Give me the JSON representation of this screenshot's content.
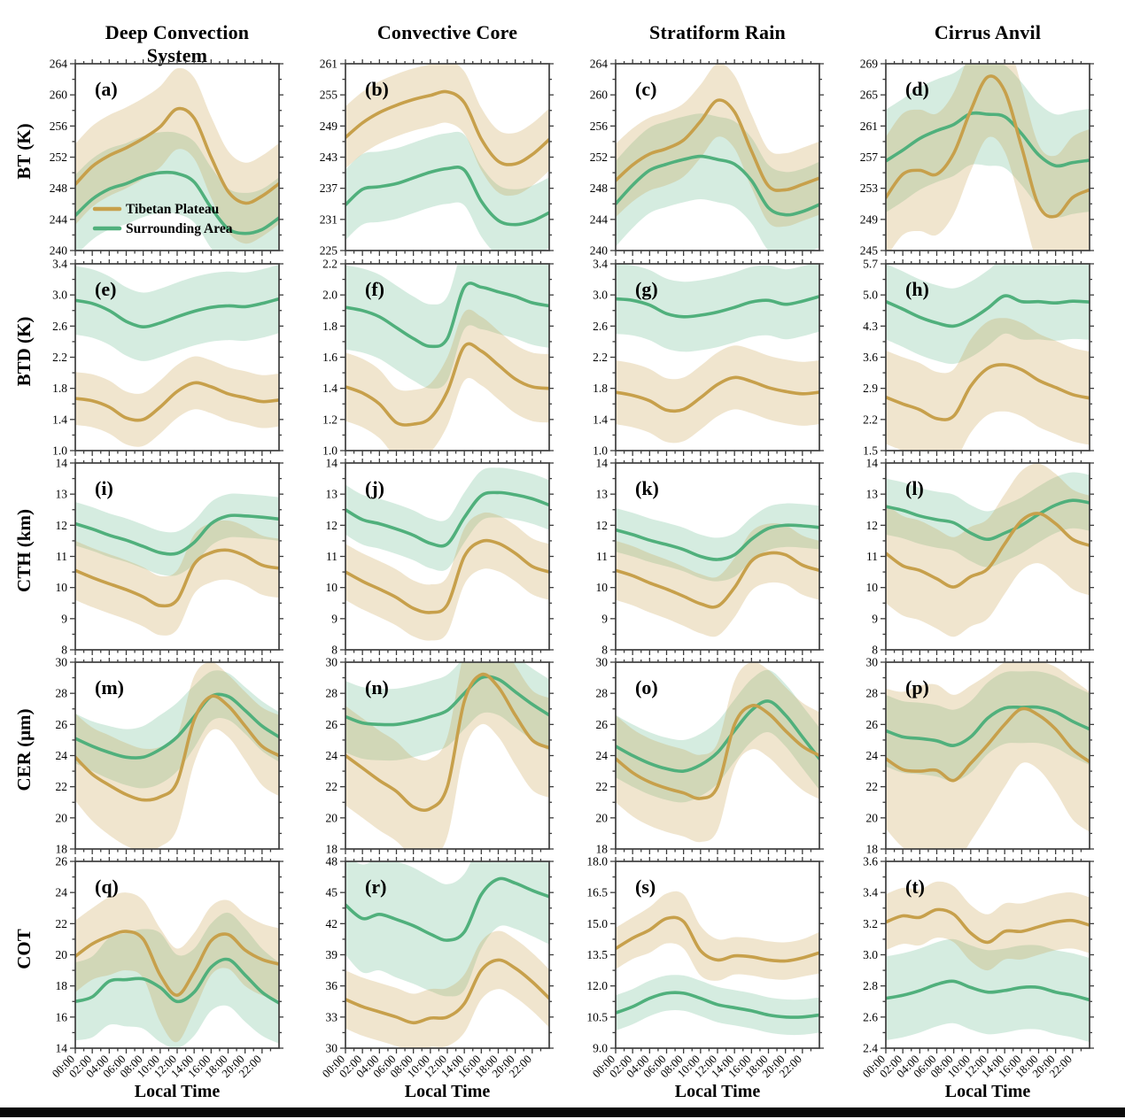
{
  "figure": {
    "columns": [
      "Deep Convection System",
      "Convective Core",
      "Stratiform Rain",
      "Cirrus Anvil"
    ],
    "rows": [
      {
        "label": "BT (K)"
      },
      {
        "label": "BTD (K)"
      },
      {
        "label": "CTH (km)"
      },
      {
        "label": "CER (μm)"
      },
      {
        "label": "COT"
      }
    ],
    "xlabel": "Local Time",
    "x_ticks": [
      "00:00",
      "02:00",
      "04:00",
      "06:00",
      "08:00",
      "10:00",
      "12:00",
      "14:00",
      "16:00",
      "18:00",
      "20:00",
      "22:00"
    ],
    "legend": {
      "tp": "Tibetan Plateau",
      "sa": "Surrounding Area"
    },
    "colors": {
      "tp": "#C7A04B",
      "sa": "#50B07C",
      "tp_band": "rgba(199,160,75,0.27)",
      "sa_band": "rgba(80,176,124,0.24)",
      "axis": "#3d3d3d"
    }
  },
  "chart_data": [
    {
      "id": "a",
      "label": "(a)",
      "row": 0,
      "col": 0,
      "type": "line",
      "legend": true,
      "yticks": [
        "240",
        "244",
        "248",
        "252",
        "256",
        "260",
        "264"
      ],
      "tp": {
        "mean": [
          248.5,
          250.8,
          252.2,
          253.2,
          254.4,
          255.9,
          258.2,
          257.0,
          252.0,
          247.6,
          246.1,
          247.0,
          248.6
        ],
        "spread": 5.2
      },
      "sa": {
        "mean": [
          244.5,
          246.6,
          247.9,
          248.6,
          249.5,
          250.0,
          249.9,
          248.8,
          245.5,
          242.8,
          242.2,
          242.7,
          244.2
        ],
        "spread": 5.2
      }
    },
    {
      "id": "b",
      "label": "(b)",
      "row": 0,
      "col": 1,
      "type": "line",
      "legend": false,
      "yticks": [
        "225",
        "231",
        "237",
        "243",
        "249",
        "255",
        "261"
      ],
      "tp": {
        "mean": [
          246.8,
          249.6,
          251.6,
          253.0,
          254.1,
          254.9,
          255.6,
          253.5,
          246.5,
          242.2,
          241.7,
          243.5,
          246.4
        ],
        "spread": 6.0
      },
      "sa": {
        "mean": [
          233.8,
          236.8,
          237.3,
          237.9,
          239.0,
          240.1,
          240.8,
          240.5,
          234.5,
          230.8,
          230.0,
          230.7,
          232.3
        ],
        "spread": 6.8
      }
    },
    {
      "id": "c",
      "label": "(c)",
      "row": 0,
      "col": 2,
      "type": "line",
      "legend": false,
      "yticks": [
        "240",
        "244",
        "248",
        "252",
        "256",
        "260",
        "264"
      ],
      "tp": {
        "mean": [
          249.0,
          251.0,
          252.4,
          253.1,
          254.2,
          256.6,
          259.3,
          257.8,
          252.8,
          248.3,
          247.8,
          248.5,
          249.3
        ],
        "spread": 4.7
      },
      "sa": {
        "mean": [
          246.0,
          248.4,
          250.3,
          251.1,
          251.7,
          252.1,
          251.7,
          251.1,
          249.0,
          245.5,
          244.6,
          245.0,
          245.9
        ],
        "spread": 5.5
      }
    },
    {
      "id": "d",
      "label": "(d)",
      "row": 0,
      "col": 3,
      "type": "line",
      "legend": false,
      "yticks": [
        "245",
        "249",
        "253",
        "257",
        "261",
        "265",
        "269"
      ],
      "tp": {
        "mean": [
          251.8,
          254.8,
          255.3,
          254.8,
          257.5,
          263.0,
          267.3,
          265.5,
          258.3,
          250.8,
          249.4,
          251.8,
          252.8
        ],
        "spread": 7.8
      },
      "sa": {
        "mean": [
          256.5,
          257.9,
          259.4,
          260.4,
          261.2,
          262.6,
          262.5,
          262.2,
          260.0,
          257.3,
          255.9,
          256.3,
          256.6
        ],
        "spread": 6.6
      }
    },
    {
      "id": "e",
      "label": "(e)",
      "row": 1,
      "col": 0,
      "type": "line",
      "legend": false,
      "yticks": [
        "1.0",
        "1.4",
        "1.8",
        "2.2",
        "2.6",
        "3.0",
        "3.4"
      ],
      "tp": {
        "mean": [
          1.67,
          1.64,
          1.56,
          1.42,
          1.4,
          1.56,
          1.76,
          1.87,
          1.82,
          1.73,
          1.68,
          1.63,
          1.65
        ],
        "spread": 0.34
      },
      "sa": {
        "mean": [
          2.93,
          2.89,
          2.8,
          2.66,
          2.59,
          2.64,
          2.72,
          2.79,
          2.84,
          2.86,
          2.85,
          2.89,
          2.95
        ],
        "spread": 0.44
      }
    },
    {
      "id": "f",
      "label": "(f)",
      "row": 1,
      "col": 1,
      "type": "line",
      "legend": false,
      "yticks": [
        "1.0",
        "1.2",
        "1.4",
        "1.6",
        "1.8",
        "2.0",
        "2.2"
      ],
      "tp": {
        "mean": [
          1.41,
          1.37,
          1.3,
          1.18,
          1.17,
          1.21,
          1.38,
          1.67,
          1.64,
          1.55,
          1.46,
          1.41,
          1.4
        ],
        "spread": 0.22
      },
      "sa": {
        "mean": [
          1.92,
          1.9,
          1.86,
          1.79,
          1.72,
          1.67,
          1.72,
          2.05,
          2.05,
          2.02,
          1.99,
          1.95,
          1.93
        ],
        "spread": 0.27
      }
    },
    {
      "id": "g",
      "label": "(g)",
      "row": 1,
      "col": 2,
      "type": "line",
      "legend": false,
      "yticks": [
        "1.0",
        "1.4",
        "1.8",
        "2.2",
        "2.6",
        "3.0",
        "3.4"
      ],
      "tp": {
        "mean": [
          1.75,
          1.71,
          1.64,
          1.52,
          1.53,
          1.68,
          1.85,
          1.94,
          1.89,
          1.81,
          1.76,
          1.73,
          1.75
        ],
        "spread": 0.41
      },
      "sa": {
        "mean": [
          2.95,
          2.93,
          2.87,
          2.76,
          2.72,
          2.74,
          2.78,
          2.84,
          2.91,
          2.93,
          2.88,
          2.92,
          2.98
        ],
        "spread": 0.45
      }
    },
    {
      "id": "h",
      "label": "(h)",
      "row": 1,
      "col": 3,
      "type": "line",
      "legend": false,
      "yticks": [
        "1.5",
        "2.2",
        "2.9",
        "3.6",
        "4.3",
        "5.0",
        "5.7"
      ],
      "tp": {
        "mean": [
          2.7,
          2.55,
          2.42,
          2.22,
          2.28,
          2.95,
          3.35,
          3.43,
          3.32,
          3.08,
          2.92,
          2.76,
          2.68
        ],
        "spread": 1.05
      },
      "sa": {
        "mean": [
          4.85,
          4.68,
          4.5,
          4.37,
          4.3,
          4.45,
          4.7,
          4.98,
          4.85,
          4.85,
          4.82,
          4.86,
          4.84
        ],
        "spread": 0.85
      }
    },
    {
      "id": "i",
      "label": "(i)",
      "row": 2,
      "col": 0,
      "type": "line",
      "legend": false,
      "yticks": [
        "8",
        "9",
        "10",
        "11",
        "12",
        "13",
        "14"
      ],
      "tp": {
        "mean": [
          10.55,
          10.32,
          10.12,
          9.93,
          9.7,
          9.42,
          9.6,
          10.75,
          11.12,
          11.2,
          11.02,
          10.72,
          10.62
        ],
        "spread": 0.95
      },
      "sa": {
        "mean": [
          12.05,
          11.88,
          11.68,
          11.52,
          11.32,
          11.12,
          11.1,
          11.45,
          12.05,
          12.3,
          12.3,
          12.26,
          12.2
        ],
        "spread": 0.7
      }
    },
    {
      "id": "j",
      "label": "(j)",
      "row": 2,
      "col": 1,
      "type": "line",
      "legend": false,
      "yticks": [
        "8",
        "9",
        "10",
        "11",
        "12",
        "13",
        "14"
      ],
      "tp": {
        "mean": [
          10.5,
          10.2,
          9.95,
          9.68,
          9.33,
          9.2,
          9.45,
          11.0,
          11.48,
          11.42,
          11.1,
          10.68,
          10.5
        ],
        "spread": 0.9
      },
      "sa": {
        "mean": [
          12.5,
          12.18,
          12.05,
          11.88,
          11.68,
          11.42,
          11.4,
          12.25,
          12.95,
          13.05,
          12.98,
          12.85,
          12.65
        ],
        "spread": 0.8
      }
    },
    {
      "id": "k",
      "label": "(k)",
      "row": 2,
      "col": 2,
      "type": "line",
      "legend": false,
      "yticks": [
        "8",
        "9",
        "10",
        "11",
        "12",
        "13",
        "14"
      ],
      "tp": {
        "mean": [
          10.55,
          10.38,
          10.15,
          9.95,
          9.72,
          9.48,
          9.4,
          10.0,
          10.85,
          11.1,
          11.05,
          10.72,
          10.55
        ],
        "spread": 0.95
      },
      "sa": {
        "mean": [
          11.85,
          11.7,
          11.52,
          11.38,
          11.22,
          11.0,
          10.9,
          11.05,
          11.55,
          11.9,
          12.0,
          11.98,
          11.93
        ],
        "spread": 0.7
      }
    },
    {
      "id": "l",
      "label": "(l)",
      "row": 2,
      "col": 3,
      "type": "line",
      "legend": false,
      "yticks": [
        "8",
        "9",
        "10",
        "11",
        "12",
        "13",
        "14"
      ],
      "tp": {
        "mean": [
          11.1,
          10.7,
          10.55,
          10.28,
          10.02,
          10.35,
          10.6,
          11.4,
          12.15,
          12.38,
          12.05,
          11.55,
          11.35
        ],
        "spread": 1.6
      },
      "sa": {
        "mean": [
          12.6,
          12.48,
          12.3,
          12.18,
          12.08,
          11.75,
          11.55,
          11.75,
          12.0,
          12.35,
          12.65,
          12.8,
          12.72
        ],
        "spread": 0.9
      }
    },
    {
      "id": "m",
      "label": "(m)",
      "row": 3,
      "col": 0,
      "type": "line",
      "legend": false,
      "yticks": [
        "18",
        "20",
        "22",
        "24",
        "26",
        "28",
        "30"
      ],
      "tp": {
        "mean": [
          23.9,
          22.8,
          22.1,
          21.5,
          21.15,
          21.35,
          22.3,
          26.3,
          27.8,
          27.2,
          25.9,
          24.6,
          24.0
        ],
        "spread": [
          2.8,
          3.0,
          3.2,
          3.3,
          3.3,
          3.2,
          3.0,
          2.8,
          2.2,
          2.0,
          2.2,
          2.5,
          2.6
        ]
      },
      "sa": {
        "mean": [
          25.1,
          24.6,
          24.2,
          23.9,
          23.9,
          24.4,
          25.2,
          26.5,
          27.8,
          27.8,
          26.9,
          25.9,
          25.2
        ],
        "spread": [
          1.6,
          1.6,
          1.7,
          1.8,
          2.0,
          2.2,
          2.2,
          2.0,
          1.6,
          1.5,
          1.5,
          1.6,
          1.6
        ]
      }
    },
    {
      "id": "n",
      "label": "(n)",
      "row": 3,
      "col": 1,
      "type": "line",
      "legend": false,
      "yticks": [
        "18",
        "20",
        "22",
        "24",
        "26",
        "28",
        "30"
      ],
      "tp": {
        "mean": [
          24.0,
          23.2,
          22.4,
          21.7,
          20.7,
          20.6,
          22.0,
          27.5,
          29.2,
          28.4,
          26.6,
          25.0,
          24.5
        ],
        "spread": 3.2
      },
      "sa": {
        "mean": [
          26.5,
          26.1,
          26.0,
          26.0,
          26.2,
          26.5,
          26.9,
          28.0,
          29.0,
          28.9,
          28.1,
          27.3,
          26.6
        ],
        "spread": 2.3
      }
    },
    {
      "id": "o",
      "label": "(o)",
      "row": 3,
      "col": 2,
      "type": "line",
      "legend": false,
      "yticks": [
        "18",
        "20",
        "22",
        "24",
        "26",
        "28",
        "30"
      ],
      "tp": {
        "mean": [
          23.8,
          22.9,
          22.3,
          21.9,
          21.6,
          21.25,
          22.0,
          26.0,
          27.2,
          26.7,
          25.6,
          24.6,
          24.0
        ],
        "spread": 2.8
      },
      "sa": {
        "mean": [
          24.6,
          24.0,
          23.5,
          23.15,
          23.0,
          23.4,
          24.2,
          25.6,
          26.9,
          27.5,
          26.6,
          25.2,
          23.8
        ],
        "spread": 2.0
      }
    },
    {
      "id": "p",
      "label": "(p)",
      "row": 3,
      "col": 3,
      "type": "line",
      "legend": false,
      "yticks": [
        "18",
        "20",
        "22",
        "24",
        "26",
        "28",
        "30"
      ],
      "tp": {
        "mean": [
          23.8,
          23.1,
          23.0,
          23.05,
          22.4,
          23.5,
          24.7,
          26.0,
          27.0,
          26.6,
          25.7,
          24.4,
          23.6
        ],
        "spread": [
          4.5,
          5.0,
          5.5,
          5.5,
          5.5,
          5.0,
          4.5,
          4.0,
          3.5,
          3.5,
          4.0,
          4.5,
          4.5
        ]
      },
      "sa": {
        "mean": [
          25.6,
          25.2,
          25.1,
          24.95,
          24.65,
          25.2,
          26.4,
          27.05,
          27.1,
          27.1,
          26.8,
          26.2,
          25.7
        ],
        "spread": 2.3
      }
    },
    {
      "id": "q",
      "label": "(q)",
      "row": 4,
      "col": 0,
      "type": "line",
      "legend": false,
      "yticks": [
        "14",
        "16",
        "18",
        "20",
        "22",
        "24",
        "26"
      ],
      "tp": {
        "mean": [
          19.9,
          20.7,
          21.2,
          21.5,
          21.0,
          18.7,
          17.4,
          18.9,
          20.9,
          21.3,
          20.3,
          19.7,
          19.4
        ],
        "spread": [
          2.3,
          2.3,
          2.5,
          2.5,
          2.5,
          3.0,
          3.0,
          2.5,
          2.2,
          2.2,
          2.3,
          2.3,
          2.3
        ]
      },
      "sa": {
        "mean": [
          17.0,
          17.3,
          18.3,
          18.4,
          18.45,
          17.9,
          17.0,
          17.6,
          19.2,
          19.7,
          18.7,
          17.6,
          16.9
        ],
        "spread": [
          2.5,
          2.6,
          2.8,
          3.0,
          3.2,
          3.5,
          3.0,
          2.8,
          2.8,
          3.0,
          3.0,
          2.8,
          2.6
        ]
      }
    },
    {
      "id": "r",
      "label": "(r)",
      "row": 4,
      "col": 1,
      "type": "line",
      "legend": false,
      "yticks": [
        "30",
        "33",
        "36",
        "39",
        "42",
        "45",
        "48"
      ],
      "tp": {
        "mean": [
          34.7,
          34.0,
          33.5,
          33.0,
          32.45,
          32.9,
          33.0,
          34.3,
          37.5,
          38.5,
          37.7,
          36.4,
          34.8
        ],
        "spread": 2.8
      },
      "sa": {
        "mean": [
          43.8,
          42.5,
          42.9,
          42.4,
          41.8,
          41.0,
          40.4,
          41.2,
          44.8,
          46.3,
          45.9,
          45.2,
          44.6
        ],
        "spread": [
          4.8,
          5.2,
          5.4,
          5.6,
          5.6,
          5.5,
          5.4,
          5.6,
          5.2,
          4.6,
          4.4,
          4.4,
          4.6
        ]
      }
    },
    {
      "id": "s",
      "label": "(s)",
      "row": 4,
      "col": 2,
      "type": "line",
      "legend": false,
      "yticks": [
        "9.0",
        "10.5",
        "12.0",
        "13.5",
        "15.0",
        "16.5",
        "18.0"
      ],
      "tp": {
        "mean": [
          13.8,
          14.3,
          14.7,
          15.25,
          15.1,
          13.7,
          13.25,
          13.45,
          13.4,
          13.25,
          13.2,
          13.35,
          13.6
        ],
        "spread": [
          1.0,
          1.0,
          1.1,
          1.2,
          1.3,
          1.2,
          1.0,
          0.9,
          0.9,
          0.9,
          0.9,
          0.9,
          1.0
        ]
      },
      "sa": {
        "mean": [
          10.7,
          11.0,
          11.4,
          11.65,
          11.65,
          11.4,
          11.1,
          10.95,
          10.8,
          10.6,
          10.5,
          10.5,
          10.6
        ],
        "spread": 0.85
      }
    },
    {
      "id": "t",
      "label": "(t)",
      "row": 4,
      "col": 3,
      "type": "line",
      "legend": false,
      "yticks": [
        "2.4",
        "2.6",
        "2.8",
        "3.0",
        "3.2",
        "3.4",
        "3.6"
      ],
      "tp": {
        "mean": [
          3.21,
          3.25,
          3.24,
          3.29,
          3.26,
          3.14,
          3.08,
          3.15,
          3.15,
          3.18,
          3.21,
          3.22,
          3.19
        ],
        "spread": 0.18
      },
      "sa": {
        "mean": [
          2.72,
          2.74,
          2.77,
          2.81,
          2.83,
          2.79,
          2.76,
          2.77,
          2.79,
          2.79,
          2.76,
          2.74,
          2.71
        ],
        "spread": 0.27
      }
    }
  ],
  "x_hours": [
    0,
    2,
    4,
    6,
    8,
    10,
    12,
    14,
    16,
    18,
    20,
    22,
    24
  ]
}
